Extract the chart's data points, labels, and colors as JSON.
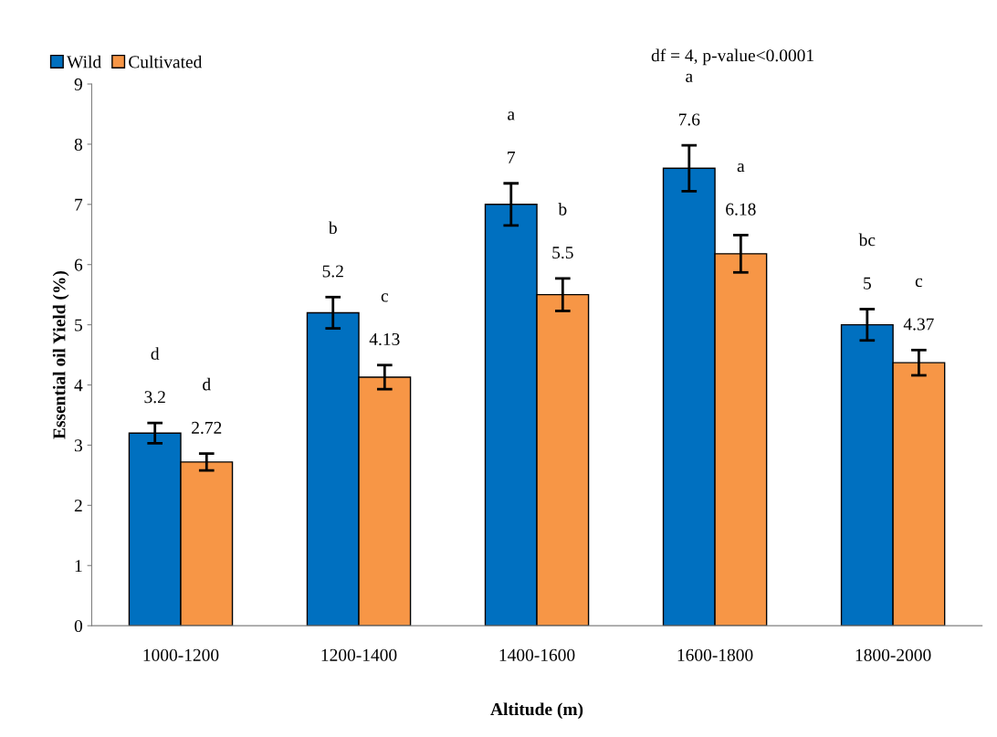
{
  "chart_data": {
    "type": "bar",
    "xlabel": "Altitude (m)",
    "ylabel": "Essential oil Yield (%)",
    "categories": [
      "1000-1200",
      "1200-1400",
      "1400-1600",
      "1600-1800",
      "1800-2000"
    ],
    "series": [
      {
        "name": "Wild",
        "color": "#0070c0",
        "values": [
          3.2,
          5.2,
          7,
          7.6,
          5
        ],
        "errors": [
          0.17,
          0.26,
          0.35,
          0.38,
          0.26
        ]
      },
      {
        "name": "Cultivated",
        "color": "#f79646",
        "values": [
          2.72,
          4.13,
          5.5,
          6.18,
          4.37
        ],
        "errors": [
          0.14,
          0.2,
          0.27,
          0.31,
          0.21
        ]
      }
    ],
    "data_labels": true,
    "ylim": [
      0,
      9
    ],
    "yticks": [
      0,
      1,
      2,
      3,
      4,
      5,
      6,
      7,
      8,
      9
    ],
    "grid": false,
    "legend": "top left",
    "annotations": [
      "df = 4, p-value<0.0001",
      "d",
      "d",
      "b",
      "c",
      "a",
      "b",
      "a",
      "a",
      "bc",
      "c"
    ]
  }
}
